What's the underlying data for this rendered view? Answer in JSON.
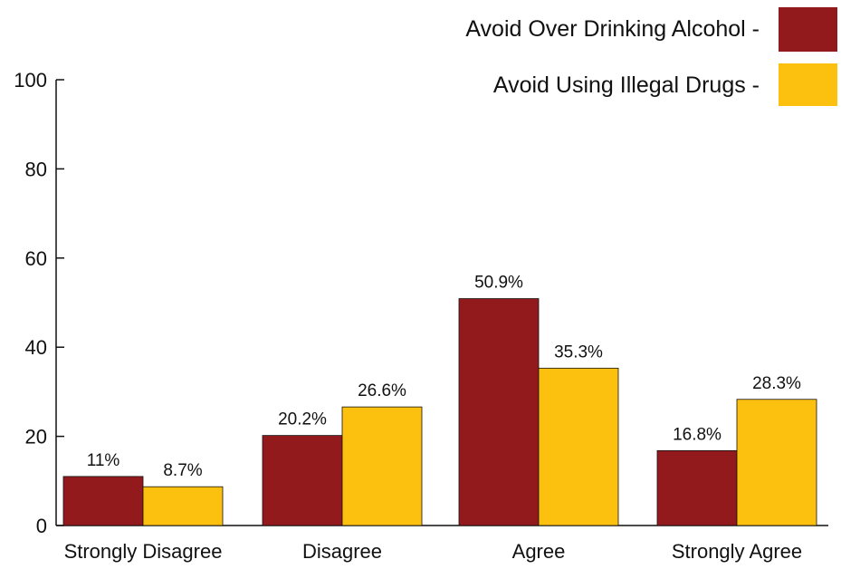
{
  "chart_data": {
    "type": "bar",
    "categories": [
      "Strongly Disagree",
      "Disagree",
      "Agree",
      "Strongly Agree"
    ],
    "series": [
      {
        "name": "Avoid Over Drinking Alcohol -",
        "values": [
          11,
          20.2,
          50.9,
          16.8
        ],
        "labels": [
          "11%",
          "20.2%",
          "50.9%",
          "16.8%"
        ],
        "color": "#921A1D"
      },
      {
        "name": "Avoid Using Illegal Drugs -",
        "values": [
          8.7,
          26.6,
          35.3,
          28.3
        ],
        "labels": [
          "8.7%",
          "26.6%",
          "35.3%",
          "28.3%"
        ],
        "color": "#FCC00F"
      }
    ],
    "yticks": [
      0,
      20,
      40,
      60,
      80,
      100
    ],
    "ylim": [
      0,
      100
    ],
    "grid": false,
    "legend_position": "top-right"
  }
}
